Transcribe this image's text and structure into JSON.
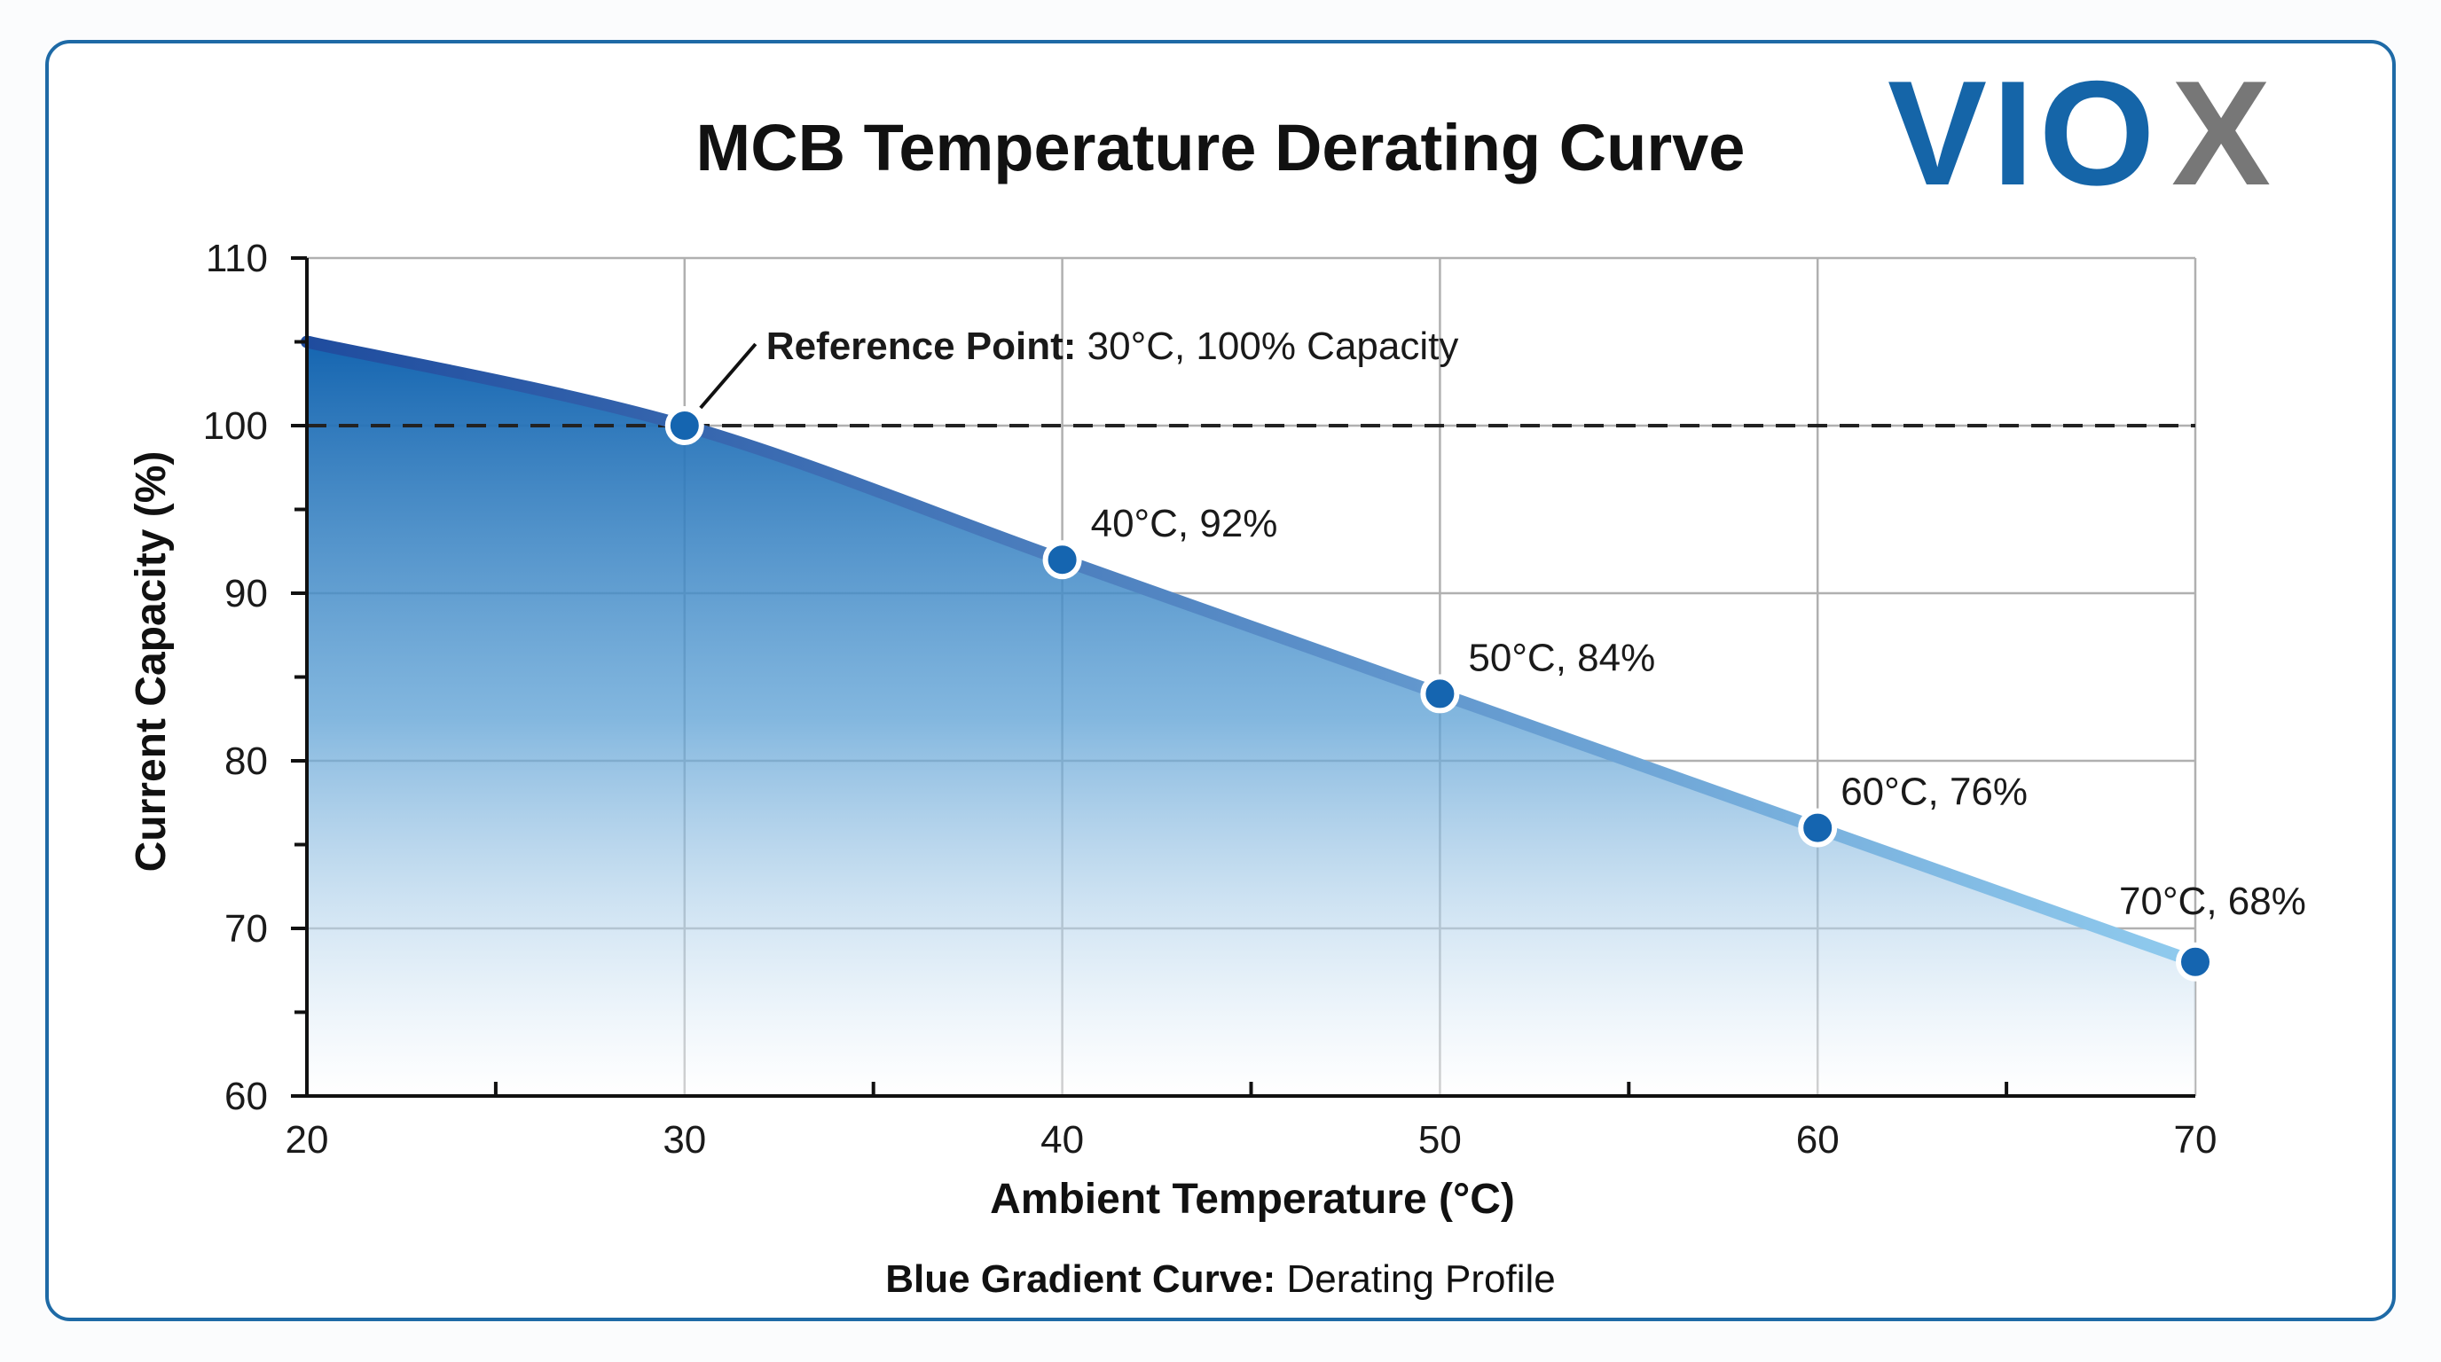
{
  "logo": {
    "text": "VIOX",
    "colors": {
      "primary": "#1565a8",
      "accent": "#777777"
    }
  },
  "chart_data": {
    "type": "area",
    "title": "MCB Temperature Derating Curve",
    "xlabel": "Ambient Temperature (°C)",
    "ylabel": "Current Capacity (%)",
    "xlim": [
      20,
      70
    ],
    "ylim": [
      60,
      110
    ],
    "xticks": [
      "20",
      "30",
      "40",
      "50",
      "60",
      "70"
    ],
    "yticks": [
      "60",
      "70",
      "80",
      "90",
      "100",
      "110"
    ],
    "grid": true,
    "x": [
      20,
      30,
      40,
      50,
      60,
      70
    ],
    "values": [
      105,
      100,
      92,
      84,
      76,
      68
    ],
    "markers": [
      30,
      40,
      50,
      60,
      70
    ],
    "reference_line": {
      "y": 100,
      "style": "dashed"
    },
    "annotations": {
      "reference_bold": "Reference Point:",
      "reference_text": " 30°C, 100% Capacity",
      "p40": "40°C, 92%",
      "p50": "50°C, 84%",
      "p60": "60°C, 76%",
      "p70": "70°C, 68%"
    },
    "legend": {
      "bold": "Blue Gradient Curve:",
      "text": " Derating Profile",
      "placement": "bottom"
    },
    "colors": {
      "fill_top": "#1565b0",
      "line_start": "#1f4c9e",
      "line_end": "#90cbee",
      "marker": "#1565b0",
      "frame": "#1e6aa6"
    }
  }
}
